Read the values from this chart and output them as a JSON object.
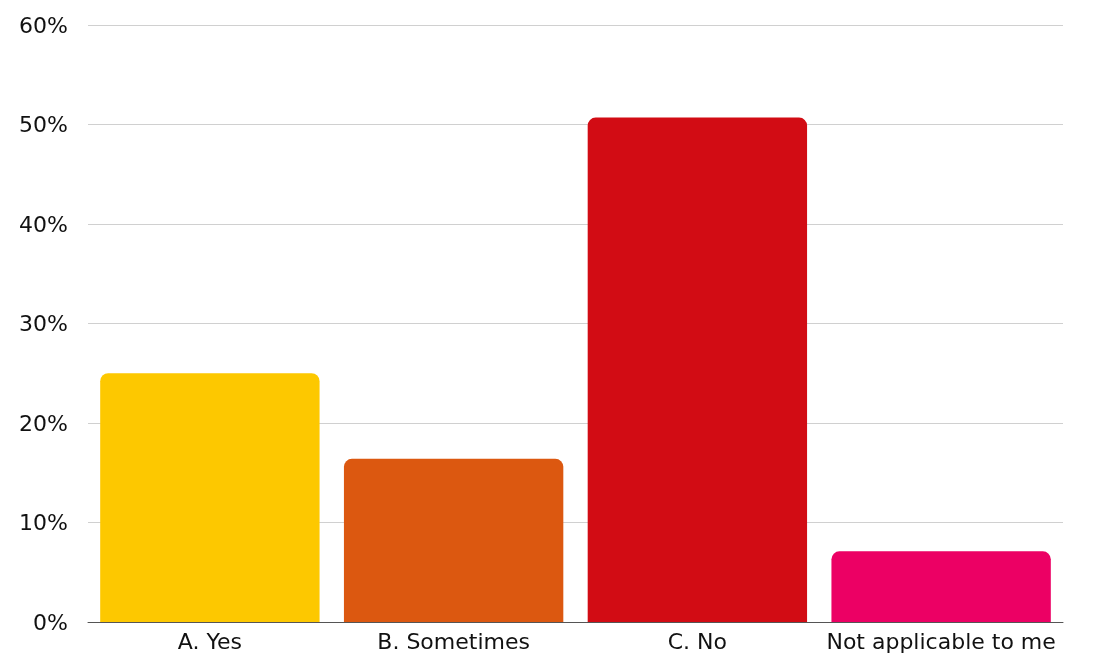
{
  "chart_data": {
    "type": "bar",
    "categories": [
      "A. Yes",
      "B. Sometimes",
      "C. No",
      "Not applicable to me"
    ],
    "values": [
      25,
      16.4,
      50.7,
      7.1
    ],
    "colors": [
      "#fdc800",
      "#dc5810",
      "#d20c14",
      "#ec0064"
    ],
    "ylim": [
      0,
      60
    ],
    "yticks": [
      {
        "value": 0,
        "label": "0%"
      },
      {
        "value": 10,
        "label": "10%"
      },
      {
        "value": 20,
        "label": "20%"
      },
      {
        "value": 30,
        "label": "30%"
      },
      {
        "value": 40,
        "label": "40%"
      },
      {
        "value": 50,
        "label": "50%"
      },
      {
        "value": 60,
        "label": "60%"
      }
    ],
    "grid": "y"
  }
}
